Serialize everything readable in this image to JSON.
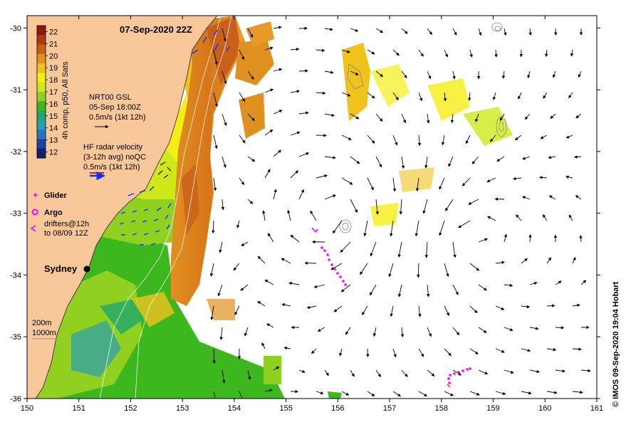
{
  "title": "07-Sep-2020 22Z",
  "credit": "© IMOS 09-Sep-2020 19:04 Hobart",
  "colorbar": {
    "label": "4h comp, p50, All Sats",
    "ticks": [
      "22",
      "21",
      "20",
      "19",
      "18",
      "17",
      "16",
      "15",
      "14",
      "13",
      "12"
    ],
    "values": [
      22,
      21,
      20,
      19,
      18,
      17,
      16,
      15,
      14,
      13,
      12
    ],
    "colors": [
      "#8b1c0c",
      "#b03a0e",
      "#c8601a",
      "#e0901e",
      "#f0c21c",
      "#f4ee14",
      "#cfe81a",
      "#8fd020",
      "#3cb81e",
      "#1fa86a",
      "#2a9cb0",
      "#2b72c0",
      "#1d3fa8",
      "#10206e"
    ]
  },
  "legend": {
    "gsl_line1": "NRT00 GSL",
    "gsl_line2": "05-Sep 18:00Z",
    "gsl_line3": "0.5m/s (1kt 12h)",
    "hf_line1": "HF radar velocity",
    "hf_line2": "(3-12h avg) noQC",
    "hf_line3": "0.5m/s (1kt 12h)",
    "glider": "Glider",
    "argo": "Argo",
    "drifters_line1": "drifters@12h",
    "drifters_line2": "to 08/09 12Z",
    "city": "Sydney",
    "bathy_200": "200m",
    "bathy_1000": "1000m"
  },
  "axes": {
    "x_ticks": [
      "150",
      "151",
      "152",
      "153",
      "154",
      "155",
      "156",
      "157",
      "158",
      "159",
      "160",
      "161"
    ],
    "x_values": [
      150,
      151,
      152,
      153,
      154,
      155,
      156,
      157,
      158,
      159,
      160,
      161
    ],
    "y_ticks": [
      "-30",
      "-31",
      "-32",
      "-33",
      "-34",
      "-35",
      "-36"
    ],
    "y_values": [
      -30,
      -31,
      -32,
      -33,
      -34,
      -35,
      -36
    ],
    "xlim": [
      150,
      161
    ],
    "ylim": [
      -36,
      -29.8
    ]
  },
  "colors": {
    "land": "#f9c89a",
    "ocean": "#ffffff",
    "glider": "#ff00ff",
    "argo": "#ff00ff",
    "hf_radar": "#1030ff"
  }
}
